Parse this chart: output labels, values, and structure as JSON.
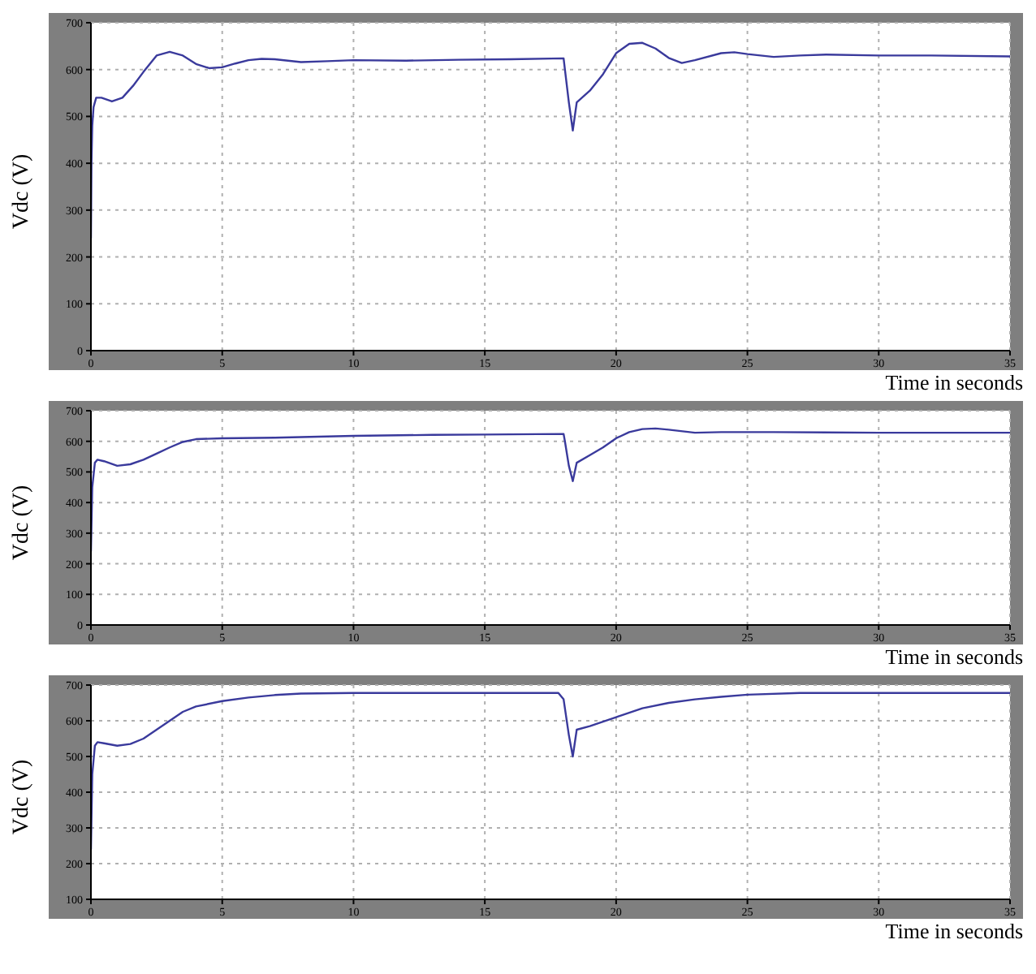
{
  "chart_data": [
    {
      "type": "line",
      "xlabel": "Time in seconds",
      "ylabel": "Vdc (V)",
      "xlim": [
        0,
        35
      ],
      "xticks": [
        0,
        5,
        10,
        15,
        20,
        25,
        30,
        35
      ],
      "ylim": [
        0,
        700
      ],
      "yticks": [
        0,
        100,
        200,
        300,
        400,
        500,
        600,
        700
      ],
      "grid": true,
      "marker": "none",
      "line_style": "solid",
      "series": [
        {
          "color": "#3a3a9c",
          "x": [
            0,
            0.02,
            0.05,
            0.1,
            0.2,
            0.4,
            0.8,
            1.2,
            1.6,
            2,
            2.5,
            3,
            3.5,
            4,
            4.5,
            5,
            5.5,
            6,
            6.5,
            7,
            8,
            9,
            10,
            12,
            14,
            16,
            18,
            18.05,
            18.2,
            18.35,
            18.5,
            19,
            19.5,
            20,
            20.5,
            21,
            21.5,
            22,
            22.5,
            23,
            24,
            24.5,
            25,
            26,
            27,
            28,
            30,
            32,
            35
          ],
          "values": [
            240,
            400,
            480,
            520,
            540,
            540,
            532,
            540,
            565,
            595,
            630,
            638,
            630,
            612,
            603,
            605,
            613,
            620,
            623,
            622,
            616,
            618,
            620,
            619,
            621,
            622,
            624,
            600,
            530,
            470,
            530,
            555,
            590,
            635,
            655,
            657,
            645,
            625,
            614,
            620,
            635,
            637,
            633,
            627,
            630,
            632,
            630,
            630,
            628
          ]
        }
      ]
    },
    {
      "type": "line",
      "xlabel": "Time in seconds",
      "ylabel": "Vdc (V)",
      "xlim": [
        0,
        35
      ],
      "xticks": [
        0,
        5,
        10,
        15,
        20,
        25,
        30,
        35
      ],
      "ylim": [
        0,
        700
      ],
      "yticks": [
        0,
        100,
        200,
        300,
        400,
        500,
        600,
        700
      ],
      "grid": true,
      "marker": "none",
      "line_style": "solid",
      "series": [
        {
          "color": "#3a3a9c",
          "x": [
            0,
            0.05,
            0.15,
            0.25,
            0.5,
            1,
            1.5,
            2,
            2.5,
            3,
            3.5,
            4,
            5,
            7,
            10,
            13,
            15,
            18,
            18.05,
            18.2,
            18.35,
            18.5,
            19,
            19.5,
            20,
            20.5,
            21,
            21.5,
            22,
            23,
            24,
            26,
            30,
            35
          ],
          "values": [
            240,
            450,
            530,
            540,
            535,
            520,
            525,
            540,
            560,
            580,
            598,
            607,
            610,
            612,
            618,
            621,
            622,
            624,
            600,
            520,
            470,
            530,
            555,
            580,
            610,
            630,
            640,
            642,
            638,
            628,
            630,
            630,
            628,
            628
          ]
        }
      ]
    },
    {
      "type": "line",
      "xlabel": "Time in seconds",
      "ylabel": "Vdc (V)",
      "xlim": [
        0,
        35
      ],
      "xticks": [
        0,
        5,
        10,
        15,
        20,
        25,
        30,
        35
      ],
      "ylim": [
        100,
        700
      ],
      "yticks": [
        100,
        200,
        300,
        400,
        500,
        600,
        700
      ],
      "grid": true,
      "marker": "none",
      "line_style": "solid",
      "series": [
        {
          "color": "#3a3a9c",
          "x": [
            0,
            0.05,
            0.15,
            0.25,
            0.5,
            1,
            1.5,
            2,
            2.5,
            3,
            3.5,
            4,
            5,
            6,
            7,
            8,
            10,
            12,
            15,
            17.8,
            18,
            18.2,
            18.35,
            18.5,
            19,
            20,
            21,
            22,
            23,
            24,
            25,
            27,
            30,
            35
          ],
          "values": [
            240,
            450,
            530,
            540,
            537,
            530,
            535,
            550,
            575,
            600,
            625,
            640,
            655,
            665,
            672,
            676,
            678,
            678,
            678,
            678,
            660,
            560,
            500,
            575,
            585,
            610,
            635,
            650,
            660,
            667,
            673,
            678,
            678,
            678
          ]
        }
      ]
    }
  ]
}
